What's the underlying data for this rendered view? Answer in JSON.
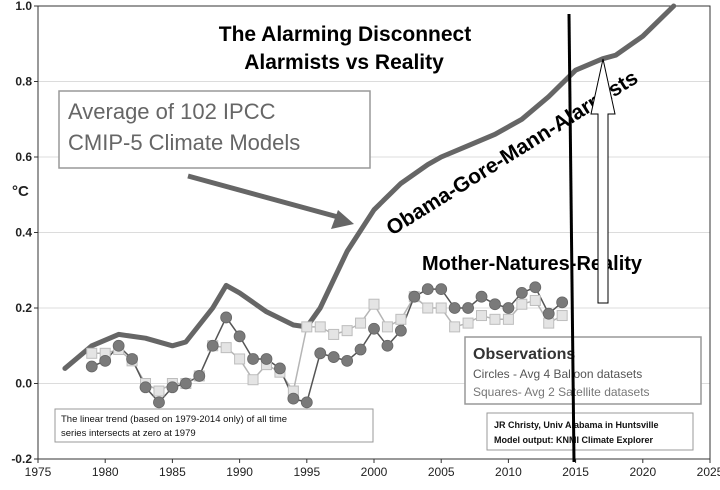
{
  "chart_data": {
    "type": "line",
    "title": [
      "The Alarming Disconnect",
      "Alarmists vs Reality"
    ],
    "ylabel": "°C",
    "xlim": [
      1975,
      2025
    ],
    "ylim": [
      -0.2,
      1.0
    ],
    "xticks": [
      1975,
      1980,
      1985,
      1990,
      1995,
      2000,
      2005,
      2010,
      2015,
      2020,
      2025
    ],
    "yticks": [
      -0.2,
      0.0,
      0.2,
      0.4,
      0.6,
      0.8,
      1.0
    ],
    "ytick_labels": [
      "-0.2",
      "0.0",
      "0.2",
      "0.4",
      "0.6",
      "0.8",
      "1.0"
    ],
    "series": [
      {
        "name": "Average of 102 IPCC CMIP-5 Climate Models",
        "style": "thick-line",
        "color": "#666666",
        "x": [
          1977,
          1979,
          1981,
          1983,
          1985,
          1986,
          1988,
          1989,
          1990,
          1992,
          1994,
          1995,
          1996,
          1998,
          2000,
          2002,
          2004,
          2005,
          2007,
          2009,
          2011,
          2013,
          2015,
          2017,
          2018,
          2020,
          2022.3
        ],
        "y": [
          0.04,
          0.1,
          0.13,
          0.12,
          0.1,
          0.11,
          0.2,
          0.26,
          0.24,
          0.19,
          0.155,
          0.15,
          0.2,
          0.35,
          0.46,
          0.53,
          0.58,
          0.6,
          0.63,
          0.66,
          0.7,
          0.76,
          0.83,
          0.86,
          0.87,
          0.92,
          1.0
        ]
      },
      {
        "name": "Circles - Avg 4 Balloon datasets",
        "style": "circles",
        "color": "#7a7a7a",
        "x": [
          1979,
          1980,
          1981,
          1982,
          1983,
          1984,
          1985,
          1986,
          1987,
          1988,
          1989,
          1990,
          1991,
          1992,
          1993,
          1994,
          1995,
          1996,
          1997,
          1998,
          1999,
          2000,
          2001,
          2002,
          2003,
          2004,
          2005,
          2006,
          2007,
          2008,
          2009,
          2010,
          2011,
          2012,
          2013,
          2014
        ],
        "y": [
          0.045,
          0.06,
          0.1,
          0.065,
          -0.01,
          -0.05,
          -0.01,
          0.0,
          0.02,
          0.1,
          0.175,
          0.125,
          0.065,
          0.065,
          0.04,
          -0.04,
          -0.05,
          0.08,
          0.07,
          0.06,
          0.09,
          0.145,
          0.1,
          0.14,
          0.23,
          0.25,
          0.25,
          0.2,
          0.2,
          0.23,
          0.21,
          0.2,
          0.24,
          0.255,
          0.185,
          0.215
        ]
      },
      {
        "name": "Squares - Avg 2 Satellite datasets",
        "style": "squares",
        "color": "#bdbdbd",
        "x": [
          1979,
          1980,
          1981,
          1982,
          1983,
          1984,
          1985,
          1986,
          1987,
          1988,
          1989,
          1990,
          1991,
          1992,
          1993,
          1994,
          1995,
          1996,
          1997,
          1998,
          1999,
          2000,
          2001,
          2002,
          2003,
          2004,
          2005,
          2006,
          2007,
          2008,
          2009,
          2010,
          2011,
          2012,
          2013,
          2014
        ],
        "y": [
          0.08,
          0.08,
          0.09,
          0.06,
          0.0,
          -0.02,
          0.0,
          0.0,
          0.02,
          0.1,
          0.095,
          0.065,
          0.01,
          0.05,
          0.03,
          -0.02,
          0.15,
          0.15,
          0.13,
          0.14,
          0.16,
          0.21,
          0.15,
          0.17,
          0.23,
          0.2,
          0.2,
          0.15,
          0.16,
          0.18,
          0.17,
          0.17,
          0.21,
          0.22,
          0.16,
          0.18
        ]
      }
    ],
    "annotations": {
      "model_box_lines": [
        "Average of 102 IPCC",
        "CMIP-5 Climate Models"
      ],
      "alarmists_label": "Obama-Gore-Mann-Alarmists",
      "reality_label": "Mother-Natures-Reality",
      "observations_title": "Observations",
      "observations_circles": "Circles - Avg 4 Balloon datasets",
      "observations_squares": "Squares- Avg 2 Satellite datasets",
      "trend_note_lines": [
        "The linear trend (based on 1979-2014 only) of all time",
        "series intersects at zero at 1979"
      ],
      "credit_lines": [
        "JR Christy, Univ Alabama in Huntsville",
        "Model output: KNMI Climate Explorer"
      ]
    },
    "colors": {
      "model_line": "#666666",
      "circle_fill": "#7a7a7a",
      "square_fill": "#e4e4e4",
      "square_stroke": "#bdbdbd",
      "obs_line": "#555555",
      "box_stroke": "#999999",
      "vertical_line": "#000000"
    }
  }
}
